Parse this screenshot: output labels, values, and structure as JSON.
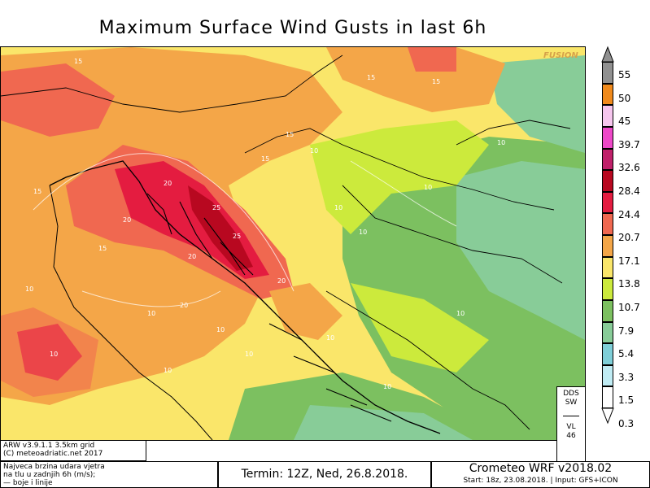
{
  "title": "Maximum Surface Wind Gusts in last 6h",
  "watermark": "FUSION",
  "legend": {
    "labels": [
      "55",
      "50",
      "45",
      "39.7",
      "32.6",
      "28.4",
      "24.4",
      "20.7",
      "17.1",
      "13.8",
      "10.7",
      "7.9",
      "5.4",
      "3.3",
      "1.5",
      "0.3"
    ],
    "colors": [
      "#909090",
      "#f08a1c",
      "#f6c6ee",
      "#ee48c8",
      "#c0206a",
      "#b80820",
      "#e41c40",
      "#f06850",
      "#f4a648",
      "#fae66a",
      "#ccea3c",
      "#7cc060",
      "#88cc98",
      "#7fcfd8",
      "#c0ecf4",
      "#ffffff"
    ]
  },
  "map": {
    "contour_labels": [
      "15",
      "15",
      "15",
      "20",
      "20",
      "20",
      "25",
      "25",
      "20",
      "15",
      "10",
      "10",
      "10",
      "10",
      "10",
      "10",
      "10",
      "15",
      "10",
      "10",
      "10",
      "15",
      "10",
      "10",
      "10",
      "15",
      "20",
      "10"
    ]
  },
  "dds_box": {
    "line1": "DDS",
    "line2": "SW",
    "line3": "VL",
    "line4": "46"
  },
  "info": {
    "line1": "ARW v3.9.1.1  3.5km grid",
    "line2": "(C) meteoadriatic.net 2017"
  },
  "description": {
    "line1": "Najveca brzina udara vjetra",
    "line2": "na tlu u zadnjih 6h (m/s);",
    "line3": "— boje i linije"
  },
  "termin": "Termin: 12Z, Ned, 26.8.2018.",
  "crometeo": {
    "title": "Crometeo WRF v2018.02",
    "subtitle": "Start: 18z, 23.08.2018. | Input: GFS+ICON"
  }
}
